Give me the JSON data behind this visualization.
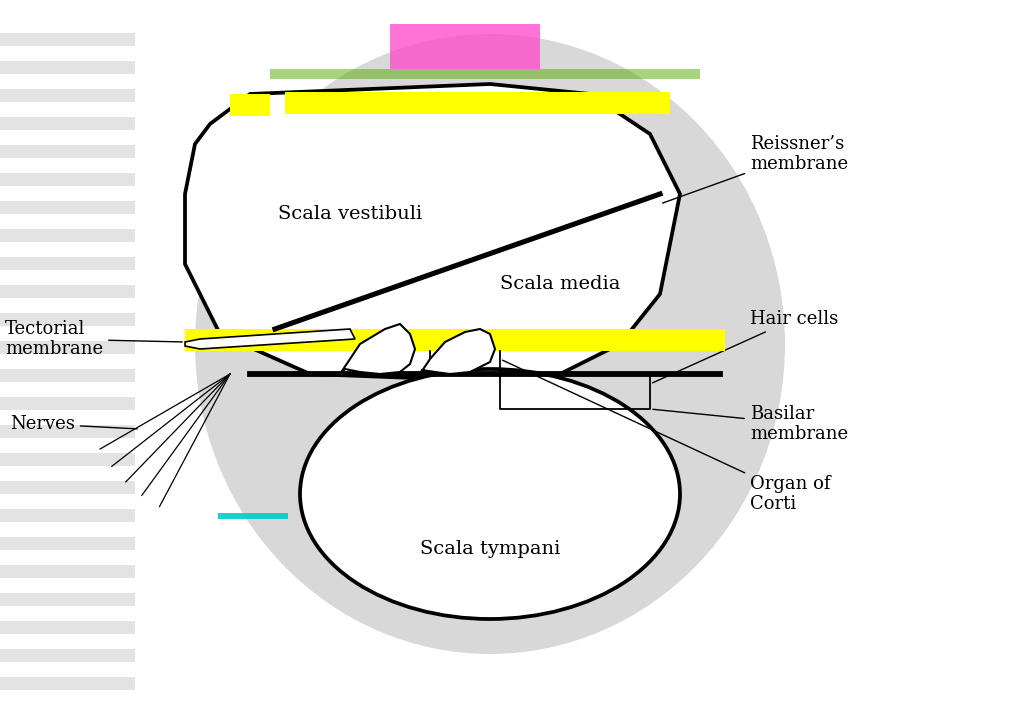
{
  "background_color": "#ffffff",
  "labels": {
    "scala_vestibuli": "Scala vestibuli",
    "scala_media": "Scala media",
    "scala_tympani": "Scala tympani",
    "reissner": "Reissner’s\nmembrane",
    "tectorial": "Tectorial\nmembrane",
    "hair_cells": "Hair cells",
    "basilar": "Basilar\nmembrane",
    "organ": "Organ of\nCorti",
    "nerves": "Nerves"
  },
  "yellow_color": "#ffff00",
  "outline_color": "#000000",
  "bg_ellipse_color": "#d8d8d8",
  "font_size": 13
}
